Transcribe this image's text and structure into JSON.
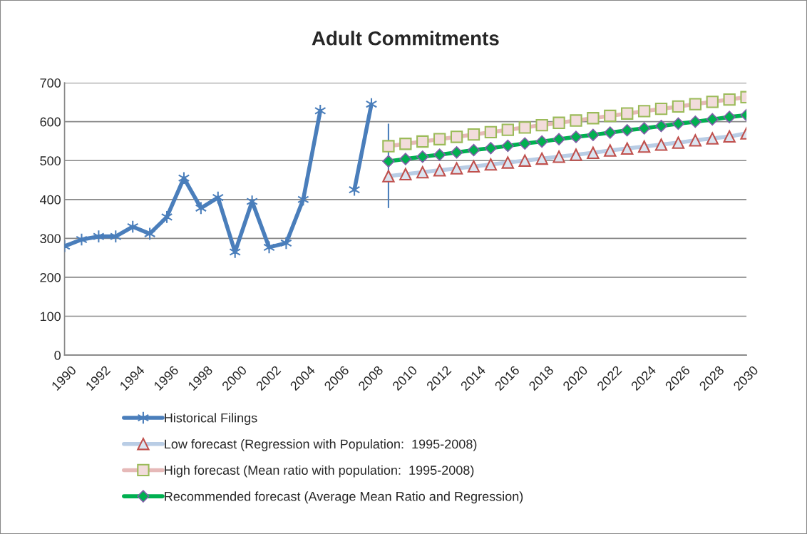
{
  "chart_data": {
    "type": "line",
    "title": "Adult Commitments",
    "xlim": [
      1990,
      2030
    ],
    "xticks": [
      1990,
      1992,
      1994,
      1996,
      1998,
      2000,
      2002,
      2004,
      2006,
      2008,
      2010,
      2012,
      2014,
      2016,
      2018,
      2020,
      2022,
      2024,
      2026,
      2028,
      2030
    ],
    "ylim": [
      0,
      700
    ],
    "yticks": [
      0,
      100,
      200,
      300,
      400,
      500,
      600,
      700
    ],
    "grid": "y",
    "legend": "bottom",
    "series": [
      {
        "name": "Historical Filings",
        "color": "#4a7ebb",
        "marker": "cross",
        "x": [
          1990,
          1991,
          1992,
          1993,
          1994,
          1995,
          1996,
          1997,
          1998,
          1999,
          2000,
          2001,
          2002,
          2003,
          2004,
          2005,
          2006,
          2007,
          2008
        ],
        "values": [
          280,
          297,
          305,
          305,
          330,
          312,
          355,
          455,
          378,
          405,
          265,
          395,
          277,
          288,
          400,
          628,
          null,
          425,
          645
        ]
      },
      {
        "name": "Low forecast (Regression with Population:  1995-2008)",
        "color": "#b9cde5",
        "marker": "triangle",
        "x": [
          2009,
          2010,
          2011,
          2012,
          2013,
          2014,
          2015,
          2016,
          2017,
          2018,
          2019,
          2020,
          2021,
          2022,
          2023,
          2024,
          2025,
          2026,
          2027,
          2028,
          2029,
          2030
        ],
        "values": [
          460,
          465,
          470,
          475,
          480,
          485,
          490,
          495,
          500,
          505,
          510,
          515,
          520,
          526,
          531,
          536,
          541,
          546,
          552,
          557,
          562,
          570
        ]
      },
      {
        "name": "High forecast (Mean ratio with population:  1995-2008)",
        "color": "#e6b9b8",
        "marker": "square",
        "x": [
          2009,
          2010,
          2011,
          2012,
          2013,
          2014,
          2015,
          2016,
          2017,
          2018,
          2019,
          2020,
          2021,
          2022,
          2023,
          2024,
          2025,
          2026,
          2027,
          2028,
          2029,
          2030
        ],
        "values": [
          537,
          543,
          549,
          555,
          561,
          567,
          573,
          579,
          585,
          591,
          597,
          603,
          609,
          615,
          621,
          627,
          633,
          639,
          645,
          651,
          657,
          663
        ]
      },
      {
        "name": "Recommended forecast (Average Mean Ratio and Regression)",
        "color": "#00b050",
        "marker": "diamond",
        "x": [
          2009,
          2010,
          2011,
          2012,
          2013,
          2014,
          2015,
          2016,
          2017,
          2018,
          2019,
          2020,
          2021,
          2022,
          2023,
          2024,
          2025,
          2026,
          2027,
          2028,
          2029,
          2030
        ],
        "values": [
          498,
          504,
          510,
          515,
          521,
          527,
          532,
          538,
          544,
          549,
          555,
          561,
          566,
          572,
          578,
          583,
          589,
          595,
          600,
          606,
          612,
          617
        ],
        "errors": [
          [
            378,
            595
          ],
          null,
          null,
          null,
          null,
          null,
          null,
          null,
          null,
          null,
          null,
          null,
          null,
          null,
          null,
          null,
          null,
          null,
          null,
          null,
          null,
          null
        ]
      }
    ]
  }
}
